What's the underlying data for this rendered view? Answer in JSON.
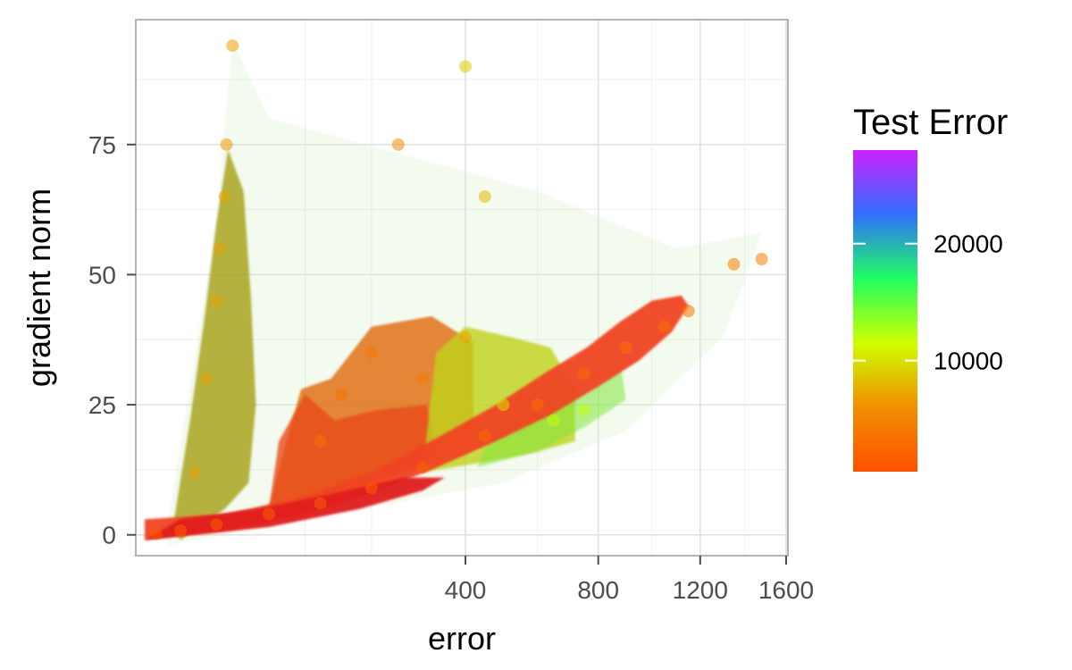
{
  "chart_data": {
    "type": "scatter",
    "title": "",
    "xlabel": "error",
    "ylabel": "gradient norm",
    "x_scale": "sqrt",
    "xlim": [
      0,
      1600
    ],
    "ylim": [
      -4,
      99
    ],
    "x_ticks": [
      400,
      800,
      1200,
      1600
    ],
    "x_tick_labels": [
      "400",
      "800",
      "1200",
      "1600"
    ],
    "y_ticks": [
      0,
      25,
      50,
      75
    ],
    "y_tick_labels": [
      "0",
      "25",
      "50",
      "75"
    ],
    "grid": true,
    "legend": {
      "title": "Test Error",
      "type": "colorbar",
      "placement": "right",
      "range": [
        500,
        28000
      ],
      "breaks": [
        10000,
        20000
      ],
      "break_labels": [
        "10000",
        "20000"
      ],
      "colors": [
        "#ff5000",
        "#f08f00",
        "#cfff00",
        "#20ff60",
        "#3070ff",
        "#cc20ff"
      ]
    },
    "series": [
      {
        "values": [
          {
            "x": 0.5,
            "y": 0.2,
            "test_error": 1000
          },
          {
            "x": 5,
            "y": 0.8,
            "test_error": 1500
          },
          {
            "x": 20,
            "y": 2,
            "test_error": 1500
          },
          {
            "x": 60,
            "y": 4,
            "test_error": 1500
          },
          {
            "x": 120,
            "y": 6,
            "test_error": 1500
          },
          {
            "x": 200,
            "y": 9,
            "test_error": 1800
          },
          {
            "x": 300,
            "y": 13,
            "test_error": 2000
          },
          {
            "x": 450,
            "y": 19,
            "test_error": 2500
          },
          {
            "x": 600,
            "y": 25,
            "test_error": 3000
          },
          {
            "x": 750,
            "y": 31,
            "test_error": 3000
          },
          {
            "x": 900,
            "y": 36,
            "test_error": 3500
          },
          {
            "x": 1050,
            "y": 40,
            "test_error": 3500
          },
          {
            "x": 1150,
            "y": 43,
            "test_error": 4000
          },
          {
            "x": 1350,
            "y": 52,
            "test_error": 4500
          },
          {
            "x": 1480,
            "y": 53,
            "test_error": 4500
          },
          {
            "x": 10,
            "y": 12,
            "test_error": 7000
          },
          {
            "x": 15,
            "y": 30,
            "test_error": 7000
          },
          {
            "x": 20,
            "y": 45,
            "test_error": 7000
          },
          {
            "x": 22,
            "y": 55,
            "test_error": 7000
          },
          {
            "x": 25,
            "y": 65,
            "test_error": 7000
          },
          {
            "x": 26,
            "y": 75,
            "test_error": 6500
          },
          {
            "x": 30,
            "y": 94,
            "test_error": 7000
          },
          {
            "x": 120,
            "y": 18,
            "test_error": 3500
          },
          {
            "x": 150,
            "y": 27,
            "test_error": 3500
          },
          {
            "x": 200,
            "y": 35,
            "test_error": 4000
          },
          {
            "x": 300,
            "y": 30,
            "test_error": 4500
          },
          {
            "x": 400,
            "y": 38,
            "test_error": 7000
          },
          {
            "x": 500,
            "y": 25,
            "test_error": 10000
          },
          {
            "x": 650,
            "y": 22,
            "test_error": 12000
          },
          {
            "x": 750,
            "y": 24,
            "test_error": 12000
          },
          {
            "x": 400,
            "y": 90,
            "test_error": 9000
          },
          {
            "x": 250,
            "y": 75,
            "test_error": 6000
          },
          {
            "x": 450,
            "y": 65,
            "test_error": 8000
          }
        ]
      }
    ]
  }
}
